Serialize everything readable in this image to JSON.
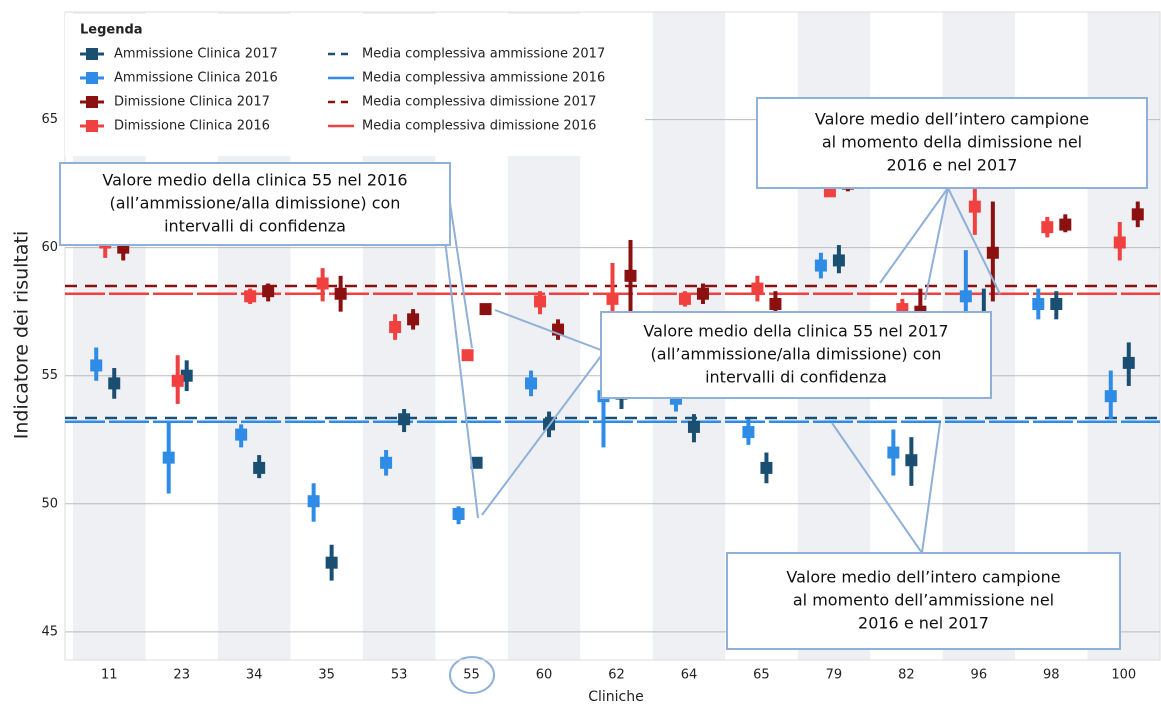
{
  "chart_data": {
    "type": "errorbar",
    "x_label": "Cliniche",
    "y_label": "Indicatore dei risultati",
    "legend_title": "Legenda",
    "categories": [
      "11",
      "23",
      "34",
      "35",
      "53",
      "55",
      "60",
      "62",
      "64",
      "65",
      "79",
      "82",
      "96",
      "98",
      "100"
    ],
    "ylim": [
      43.9,
      69.2
    ],
    "yticks": [
      45,
      50,
      55,
      60,
      65
    ],
    "grid": true,
    "series": [
      {
        "name": "Ammissione Clinica 2017",
        "color": "#1b4f72",
        "values": [
          54.7,
          55.0,
          51.4,
          47.7,
          53.3,
          51.6,
          53.1,
          54.3,
          53.0,
          51.4,
          59.5,
          51.7,
          57.0,
          57.8,
          55.5
        ],
        "lower": [
          54.1,
          54.4,
          51.0,
          47.0,
          52.8,
          51.4,
          52.6,
          53.7,
          52.4,
          50.8,
          59.0,
          50.7,
          56.5,
          57.2,
          54.6
        ],
        "upper": [
          55.3,
          55.6,
          51.9,
          48.4,
          53.7,
          51.8,
          53.6,
          55.0,
          53.5,
          52.0,
          60.1,
          52.6,
          58.4,
          58.3,
          56.3
        ]
      },
      {
        "name": "Ammissione Clinica 2016",
        "color": "#2e8be6",
        "values": [
          55.4,
          51.8,
          52.7,
          50.1,
          51.6,
          49.6,
          54.7,
          54.2,
          54.1,
          52.8,
          59.3,
          52.0,
          58.1,
          57.8,
          54.2
        ],
        "lower": [
          54.8,
          50.4,
          52.2,
          49.3,
          51.1,
          49.2,
          54.2,
          52.2,
          53.6,
          52.3,
          58.8,
          51.1,
          56.3,
          57.2,
          53.3
        ],
        "upper": [
          56.1,
          53.2,
          53.1,
          50.8,
          52.1,
          49.9,
          55.2,
          56.0,
          54.6,
          53.3,
          59.8,
          52.9,
          59.9,
          58.4,
          55.2
        ]
      },
      {
        "name": "Dimissione Clinica 2017",
        "color": "#8b1010",
        "values": [
          60.0,
          null,
          58.3,
          58.2,
          57.2,
          57.6,
          56.8,
          58.9,
          58.2,
          57.8,
          62.5,
          57.5,
          59.8,
          60.9,
          61.3
        ],
        "lower": [
          59.5,
          null,
          57.9,
          57.5,
          56.8,
          57.5,
          56.4,
          57.5,
          57.8,
          57.3,
          62.2,
          57.3,
          57.9,
          60.6,
          60.8
        ],
        "upper": [
          60.6,
          null,
          58.6,
          58.9,
          57.6,
          57.8,
          57.2,
          60.3,
          58.6,
          58.3,
          62.8,
          58.4,
          61.8,
          61.3,
          61.8
        ]
      },
      {
        "name": "Dimissione Clinica 2016",
        "color": "#f04040",
        "values": [
          60.2,
          54.8,
          58.1,
          58.6,
          56.9,
          55.8,
          57.9,
          58.0,
          58.0,
          58.4,
          62.2,
          57.6,
          61.6,
          60.8,
          60.2
        ],
        "lower": [
          59.6,
          53.9,
          57.8,
          57.9,
          56.4,
          55.6,
          57.4,
          56.5,
          57.7,
          57.9,
          62.0,
          57.2,
          60.5,
          60.4,
          59.5
        ],
        "upper": [
          60.8,
          55.8,
          58.4,
          59.2,
          57.4,
          56.0,
          58.3,
          59.4,
          58.3,
          58.9,
          62.4,
          58.0,
          62.3,
          61.2,
          61.0
        ]
      }
    ],
    "reference_lines": [
      {
        "name": "Media complessiva ammissione 2017",
        "value": 53.35,
        "color": "#1b4f72",
        "dashed": true
      },
      {
        "name": "Media complessiva ammissione 2016",
        "value": 53.2,
        "color": "#2e8be6",
        "dashed": false
      },
      {
        "name": "Media complessiva dimissione 2017",
        "value": 58.5,
        "color": "#8b1010",
        "dashed": true
      },
      {
        "name": "Media complessiva dimissione 2016",
        "value": 58.2,
        "color": "#f04040",
        "dashed": false
      }
    ],
    "annotations": [
      {
        "lines": [
          "Valore medio della clinica 55 nel 2016",
          "(all’ammissione/alla dimissione) con",
          "intervalli di confidenza"
        ]
      },
      {
        "lines": [
          "Valore medio della clinica 55 nel 2017",
          "(all’ammissione/alla dimissione) con",
          "intervalli di confidenza"
        ]
      },
      {
        "lines": [
          "Valore medio dell’intero campione",
          "al momento della dimissione nel",
          "2016 e nel 2017"
        ]
      },
      {
        "lines": [
          "Valore medio dell’intero campione",
          "al momento dell’ammissione nel",
          "2016 e nel 2017"
        ]
      }
    ]
  }
}
